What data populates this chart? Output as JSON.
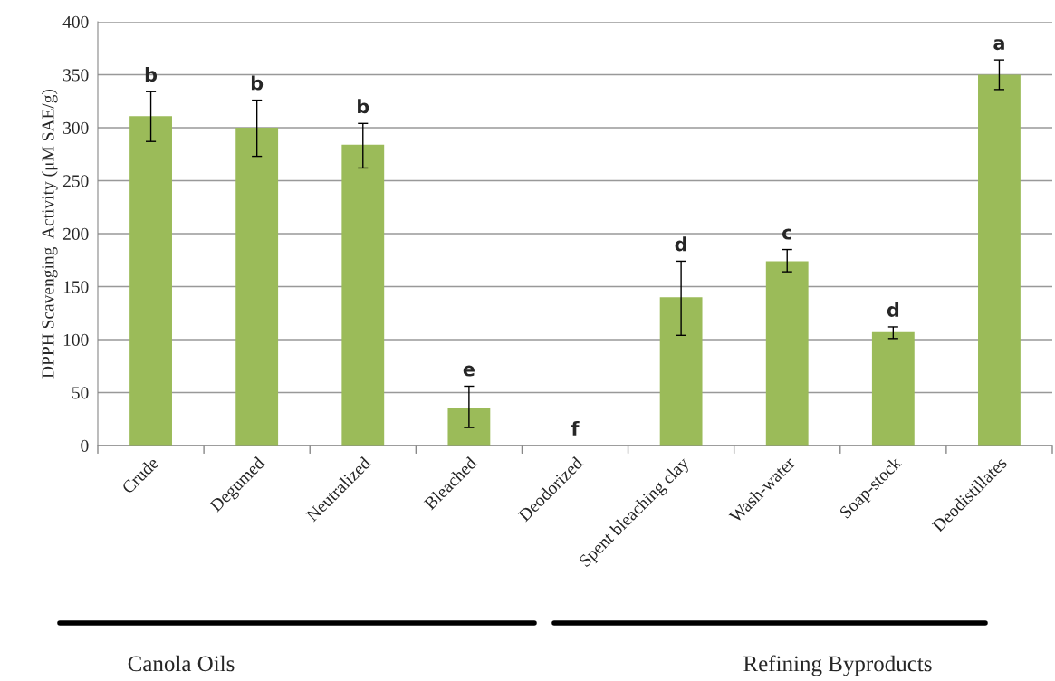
{
  "chart_data": {
    "type": "bar",
    "ylabel": "DPPH Scavenging  Activity (μM SAE/g)",
    "categories": [
      "Crude",
      "Degumed",
      "Neutralized",
      "Bleached",
      "Deodorized",
      "Spent bleaching clay",
      "Wash-water",
      "Soap-stock",
      "Deodistillates"
    ],
    "values": [
      311,
      300,
      284,
      36,
      0,
      140,
      174,
      107,
      350
    ],
    "errors": [
      [
        287,
        334
      ],
      [
        273,
        326
      ],
      [
        262,
        304
      ],
      [
        17,
        56
      ],
      null,
      [
        104,
        174
      ],
      [
        164,
        185
      ],
      [
        101,
        112
      ],
      [
        336,
        364
      ]
    ],
    "color": "#9bbb59",
    "ylim": [
      0,
      400
    ],
    "yticks": [
      0,
      50,
      100,
      150,
      200,
      250,
      300,
      350,
      400
    ],
    "grid": "y",
    "legend": false,
    "annotations": [
      {
        "text": "b",
        "x": "Crude",
        "y": 334
      },
      {
        "text": "b",
        "x": "Degumed",
        "y": 326
      },
      {
        "text": "b",
        "x": "Neutralized",
        "y": 304
      },
      {
        "text": "e",
        "x": "Bleached",
        "y": 56
      },
      {
        "text": "f",
        "x": "Deodorized",
        "y": 0
      },
      {
        "text": "d",
        "x": "Spent bleaching clay",
        "y": 174
      },
      {
        "text": "c",
        "x": "Wash-water",
        "y": 185
      },
      {
        "text": "d",
        "x": "Soap-stock",
        "y": 112
      },
      {
        "text": "a",
        "x": "Deodistillates",
        "y": 364
      },
      "Canola Oils",
      "Refining Byproducts"
    ]
  }
}
